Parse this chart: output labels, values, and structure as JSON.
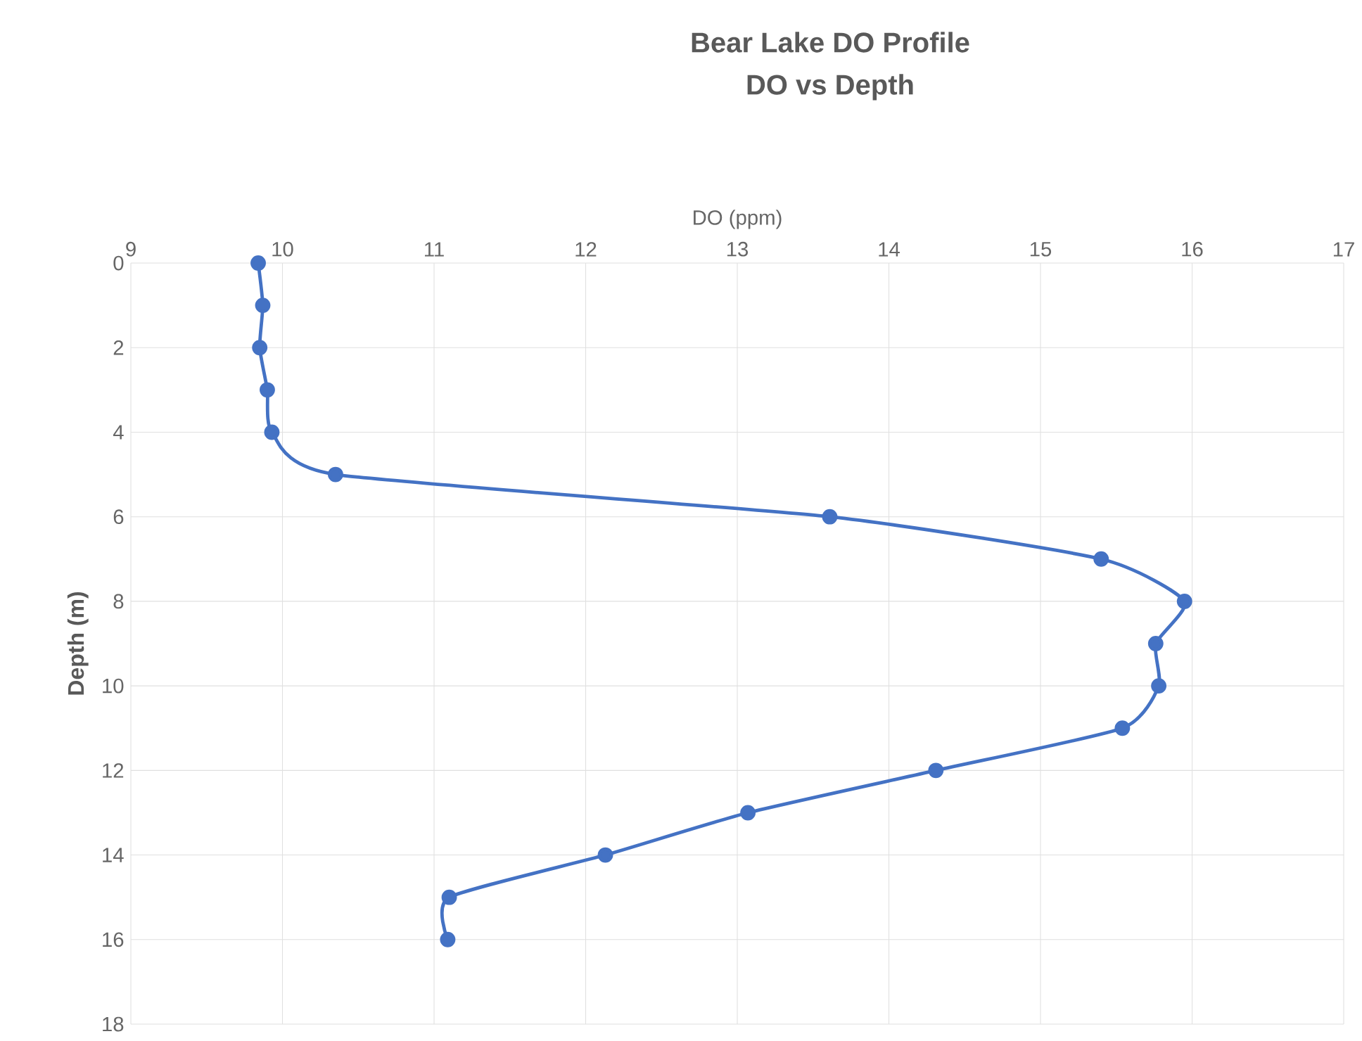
{
  "chart_data": {
    "type": "line",
    "title": "Bear Lake DO Profile",
    "subtitle": "DO vs Depth",
    "xlabel": "DO (ppm)",
    "ylabel": "Depth (m)",
    "series": [
      {
        "color": "#4472c4",
        "x": [
          9.84,
          9.87,
          9.85,
          9.9,
          9.93,
          10.35,
          13.61,
          15.4,
          15.95,
          15.76,
          15.78,
          15.54,
          14.31,
          13.07,
          12.13,
          11.1,
          11.09
        ],
        "values": [
          0,
          1,
          2,
          3,
          4,
          5,
          6,
          7,
          8,
          9,
          10,
          11,
          12,
          13,
          14,
          15,
          16
        ]
      }
    ],
    "xlim": [
      9,
      17
    ],
    "xticks": [
      9,
      10,
      11,
      12,
      13,
      14,
      15,
      16,
      17
    ],
    "ylim": [
      18,
      0
    ],
    "yticks": [
      0,
      2,
      4,
      6,
      8,
      10,
      12,
      14,
      16,
      18
    ],
    "grid": true,
    "marker": "circle"
  }
}
